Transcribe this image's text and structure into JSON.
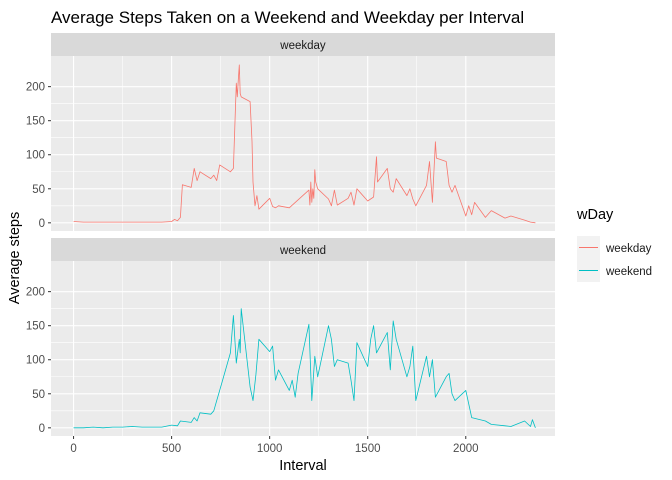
{
  "chart_data": {
    "type": "line",
    "title": "Average Steps Taken on a Weekend and Weekday per Interval",
    "xlabel": "Interval",
    "ylabel": "Average steps",
    "facets": [
      "weekday",
      "weekend"
    ],
    "x_ticks": [
      0,
      500,
      1000,
      1500,
      2000
    ],
    "y_ticks": [
      0,
      50,
      100,
      150,
      200
    ],
    "xlim": [
      -115,
      2455
    ],
    "ylim": [
      -12,
      245
    ],
    "grid": true,
    "legend": {
      "title": "wDay",
      "position": "right",
      "entries": [
        {
          "label": "weekday",
          "color": "#F8766D"
        },
        {
          "label": "weekend",
          "color": "#00BFC4"
        }
      ]
    },
    "series": [
      {
        "name": "weekday",
        "color": "#F8766D",
        "facet": "weekday",
        "x": [
          0,
          50,
          100,
          150,
          200,
          250,
          300,
          350,
          400,
          450,
          500,
          515,
          530,
          545,
          555,
          600,
          615,
          630,
          645,
          700,
          715,
          730,
          745,
          800,
          815,
          830,
          835,
          840,
          845,
          850,
          855,
          900,
          910,
          915,
          925,
          935,
          945,
          1000,
          1015,
          1030,
          1045,
          1100,
          1200,
          1205,
          1210,
          1215,
          1220,
          1225,
          1230,
          1235,
          1245,
          1300,
          1315,
          1330,
          1345,
          1400,
          1415,
          1430,
          1445,
          1500,
          1530,
          1545,
          1550,
          1600,
          1615,
          1630,
          1645,
          1700,
          1715,
          1730,
          1745,
          1800,
          1815,
          1830,
          1845,
          1850,
          1900,
          1915,
          1930,
          1945,
          2000,
          2015,
          2030,
          2045,
          2100,
          2130,
          2200,
          2230,
          2300,
          2330,
          2355
        ],
        "y": [
          2,
          1,
          1,
          1,
          1,
          1,
          1,
          1,
          1,
          1,
          2,
          5,
          3,
          8,
          56,
          52,
          80,
          62,
          75,
          65,
          70,
          62,
          85,
          75,
          80,
          205,
          185,
          210,
          232,
          190,
          185,
          178,
          120,
          60,
          25,
          40,
          20,
          36,
          24,
          22,
          25,
          22,
          48,
          26,
          60,
          30,
          50,
          36,
          78,
          60,
          50,
          35,
          25,
          48,
          26,
          36,
          45,
          26,
          50,
          32,
          38,
          97,
          60,
          80,
          50,
          45,
          65,
          40,
          50,
          35,
          25,
          55,
          90,
          30,
          119,
          95,
          90,
          55,
          45,
          55,
          10,
          25,
          12,
          30,
          8,
          18,
          7,
          10,
          4,
          1,
          0
        ]
      },
      {
        "name": "weekend",
        "color": "#00BFC4",
        "facet": "weekend",
        "x": [
          0,
          50,
          100,
          150,
          200,
          250,
          300,
          350,
          400,
          450,
          500,
          530,
          545,
          600,
          615,
          630,
          645,
          700,
          715,
          730,
          745,
          800,
          815,
          830,
          845,
          850,
          855,
          900,
          915,
          930,
          945,
          1000,
          1015,
          1030,
          1045,
          1100,
          1115,
          1130,
          1145,
          1200,
          1215,
          1230,
          1245,
          1300,
          1315,
          1330,
          1345,
          1400,
          1415,
          1430,
          1445,
          1500,
          1515,
          1530,
          1545,
          1600,
          1615,
          1630,
          1645,
          1700,
          1715,
          1730,
          1745,
          1800,
          1815,
          1830,
          1845,
          1900,
          1915,
          1930,
          1945,
          2000,
          2030,
          2100,
          2130,
          2200,
          2230,
          2300,
          2330,
          2340,
          2355
        ],
        "y": [
          0,
          0,
          1,
          0,
          1,
          1,
          2,
          1,
          1,
          1,
          4,
          3,
          10,
          8,
          15,
          10,
          22,
          20,
          25,
          40,
          55,
          110,
          165,
          95,
          130,
          110,
          175,
          60,
          40,
          78,
          130,
          112,
          120,
          70,
          85,
          55,
          70,
          45,
          80,
          152,
          40,
          105,
          75,
          150,
          130,
          90,
          100,
          95,
          70,
          40,
          125,
          90,
          130,
          150,
          110,
          140,
          85,
          157,
          130,
          75,
          90,
          120,
          40,
          105,
          75,
          100,
          45,
          75,
          80,
          50,
          40,
          55,
          15,
          10,
          5,
          3,
          2,
          10,
          2,
          12,
          0
        ]
      }
    ]
  }
}
